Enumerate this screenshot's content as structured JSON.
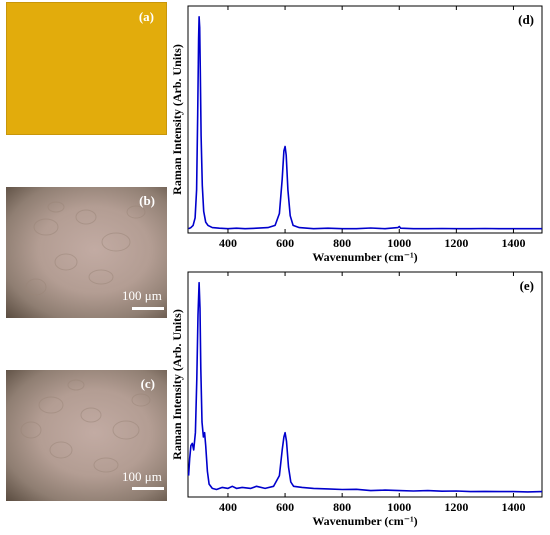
{
  "panels": {
    "a": {
      "label": "(a)"
    },
    "b": {
      "label": "(b)",
      "scale_bar": "100 μm"
    },
    "c": {
      "label": "(c)",
      "scale_bar": "100 μm"
    }
  },
  "colors": {
    "sample": "#e2ac0c",
    "spectrum": "#0000cc"
  },
  "chart_data": [
    {
      "type": "line",
      "panel_label": "(d)",
      "xlabel": "Wavenumber (cm⁻¹)",
      "ylabel": "Raman Intensity (Arb. Units)",
      "xlim": [
        260,
        1500
      ],
      "ylim": [
        0,
        1.05
      ],
      "xticks": [
        400,
        600,
        800,
        1000,
        1200,
        1400
      ],
      "yticks_shown": false,
      "series": [
        {
          "values": [
            [
              262,
              0.02
            ],
            [
              270,
              0.025
            ],
            [
              278,
              0.035
            ],
            [
              285,
              0.07
            ],
            [
              290,
              0.2
            ],
            [
              294,
              0.55
            ],
            [
              297,
              0.9
            ],
            [
              299,
              1.0
            ],
            [
              301,
              0.95
            ],
            [
              303,
              0.75
            ],
            [
              306,
              0.45
            ],
            [
              310,
              0.22
            ],
            [
              315,
              0.1
            ],
            [
              322,
              0.05
            ],
            [
              330,
              0.035
            ],
            [
              345,
              0.025
            ],
            [
              370,
              0.022
            ],
            [
              400,
              0.02
            ],
            [
              430,
              0.022
            ],
            [
              460,
              0.02
            ],
            [
              500,
              0.022
            ],
            [
              540,
              0.025
            ],
            [
              565,
              0.035
            ],
            [
              580,
              0.09
            ],
            [
              590,
              0.25
            ],
            [
              596,
              0.38
            ],
            [
              600,
              0.4
            ],
            [
              604,
              0.36
            ],
            [
              610,
              0.2
            ],
            [
              618,
              0.08
            ],
            [
              628,
              0.035
            ],
            [
              650,
              0.025
            ],
            [
              700,
              0.02
            ],
            [
              750,
              0.022
            ],
            [
              800,
              0.02
            ],
            [
              850,
              0.02
            ],
            [
              900,
              0.023
            ],
            [
              950,
              0.02
            ],
            [
              995,
              0.025
            ],
            [
              1000,
              0.03
            ],
            [
              1005,
              0.022
            ],
            [
              1050,
              0.02
            ],
            [
              1100,
              0.02
            ],
            [
              1150,
              0.021
            ],
            [
              1200,
              0.02
            ],
            [
              1250,
              0.02
            ],
            [
              1300,
              0.021
            ],
            [
              1350,
              0.02
            ],
            [
              1400,
              0.02
            ],
            [
              1450,
              0.02
            ],
            [
              1500,
              0.02
            ]
          ]
        }
      ]
    },
    {
      "type": "line",
      "panel_label": "(e)",
      "xlabel": "Wavenumber (cm⁻¹)",
      "ylabel": "Raman Intensity (Arb. Units)",
      "xlim": [
        260,
        1500
      ],
      "ylim": [
        0,
        1.05
      ],
      "xticks": [
        400,
        600,
        800,
        1000,
        1200,
        1400
      ],
      "yticks_shown": false,
      "series": [
        {
          "values": [
            [
              262,
              0.1
            ],
            [
              266,
              0.18
            ],
            [
              270,
              0.24
            ],
            [
              275,
              0.25
            ],
            [
              280,
              0.22
            ],
            [
              286,
              0.3
            ],
            [
              291,
              0.55
            ],
            [
              295,
              0.85
            ],
            [
              299,
              1.0
            ],
            [
              302,
              0.88
            ],
            [
              305,
              0.6
            ],
            [
              309,
              0.35
            ],
            [
              314,
              0.28
            ],
            [
              318,
              0.3
            ],
            [
              322,
              0.24
            ],
            [
              328,
              0.12
            ],
            [
              334,
              0.06
            ],
            [
              345,
              0.04
            ],
            [
              360,
              0.035
            ],
            [
              380,
              0.045
            ],
            [
              400,
              0.04
            ],
            [
              415,
              0.05
            ],
            [
              430,
              0.04
            ],
            [
              450,
              0.045
            ],
            [
              480,
              0.04
            ],
            [
              500,
              0.05
            ],
            [
              530,
              0.04
            ],
            [
              560,
              0.05
            ],
            [
              580,
              0.1
            ],
            [
              590,
              0.22
            ],
            [
              596,
              0.28
            ],
            [
              600,
              0.3
            ],
            [
              605,
              0.26
            ],
            [
              612,
              0.14
            ],
            [
              620,
              0.07
            ],
            [
              630,
              0.05
            ],
            [
              660,
              0.045
            ],
            [
              700,
              0.04
            ],
            [
              750,
              0.038
            ],
            [
              800,
              0.035
            ],
            [
              850,
              0.036
            ],
            [
              900,
              0.03
            ],
            [
              950,
              0.032
            ],
            [
              1000,
              0.03
            ],
            [
              1050,
              0.028
            ],
            [
              1100,
              0.03
            ],
            [
              1150,
              0.027
            ],
            [
              1200,
              0.028
            ],
            [
              1250,
              0.025
            ],
            [
              1300,
              0.026
            ],
            [
              1350,
              0.025
            ],
            [
              1400,
              0.025
            ],
            [
              1450,
              0.024
            ],
            [
              1500,
              0.025
            ]
          ]
        }
      ]
    }
  ]
}
